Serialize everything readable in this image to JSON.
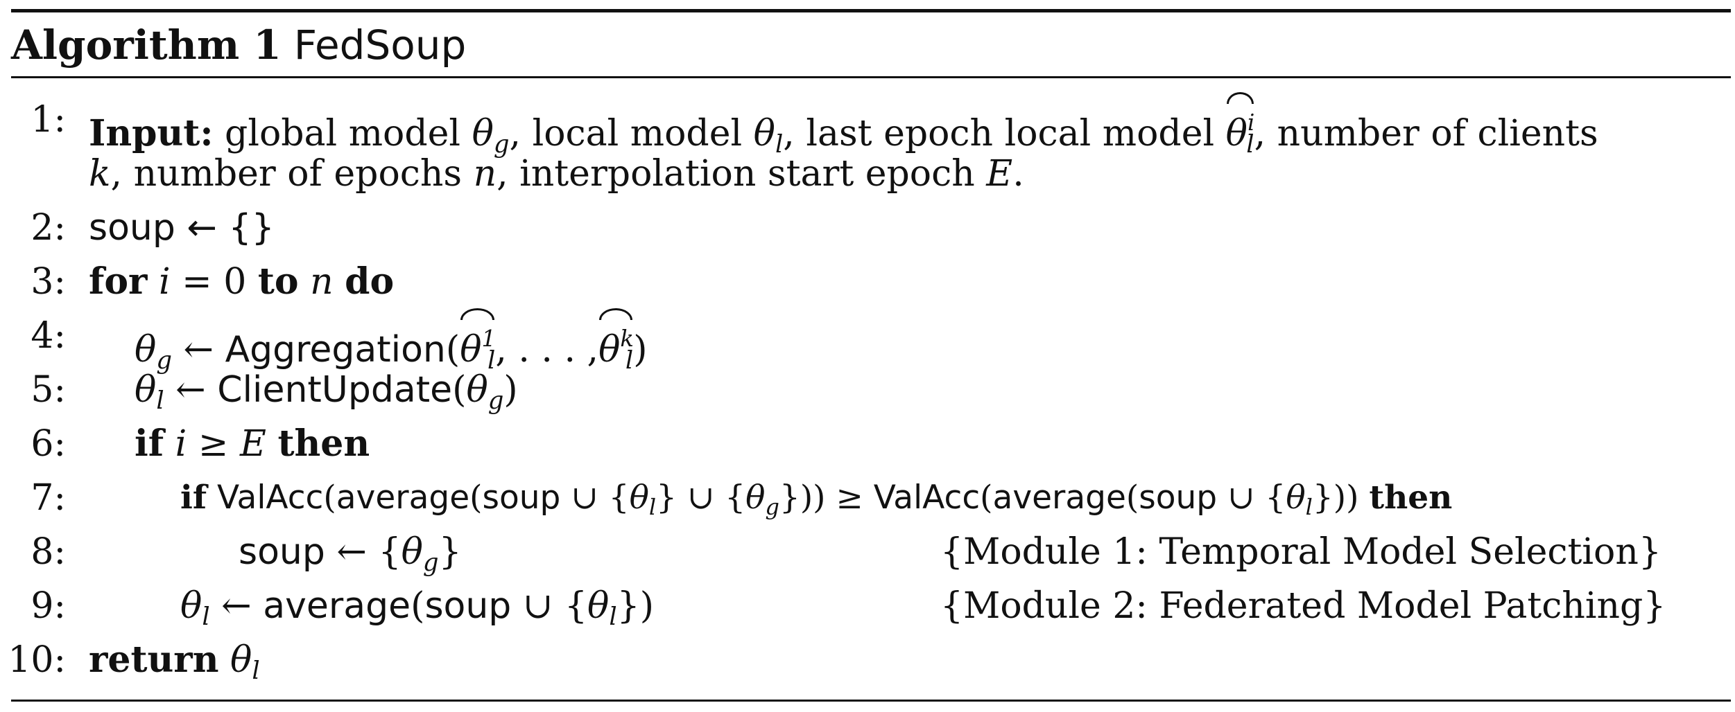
{
  "header": {
    "label": "Algorithm 1",
    "name": "FedSoup"
  },
  "lines": [
    {
      "num": "1:",
      "input_kw": "Input:",
      "t1": "global model",
      "t2": ", local model",
      "t3": ", last epoch local model",
      "t4": ", number of clients",
      "t5": ", number of epochs",
      "t6": ", interpolation start epoch",
      "t7": "."
    },
    {
      "num": "2:",
      "text": "soup ← {}"
    },
    {
      "num": "3:",
      "kw_for": "for",
      "var_i": "i",
      "eq_zero": "= 0",
      "kw_to": "to",
      "var_n": "n",
      "kw_do": "do"
    },
    {
      "num": "4:",
      "func": "Aggregation",
      "sup_first": "1",
      "dots": ", . . . ,",
      "sup_last": "k"
    },
    {
      "num": "5:",
      "func": "ClientUpdate"
    },
    {
      "num": "6:",
      "kw_if": "if",
      "var_i": "i",
      "geq": "≥",
      "var_E": "E",
      "kw_then": "then"
    },
    {
      "num": "7:",
      "kw_if": "if",
      "func1": "ValAcc",
      "func2": "average",
      "soup": "soup",
      "geq": "≥",
      "kw_then": "then"
    },
    {
      "num": "8:",
      "soup": "soup",
      "comment": "{Module 1: Temporal Model Selection}"
    },
    {
      "num": "9:",
      "func": "average",
      "soup": "soup",
      "comment": "{Module 2: Federated Model Patching}"
    },
    {
      "num": "10:",
      "kw_return": "return"
    }
  ],
  "symbols": {
    "theta": "θ",
    "sub_g": "g",
    "sub_l": "l",
    "sup_i": "i",
    "var_k": "k",
    "var_n": "n",
    "var_E": "E",
    "arrow": "←",
    "union": "∪"
  }
}
